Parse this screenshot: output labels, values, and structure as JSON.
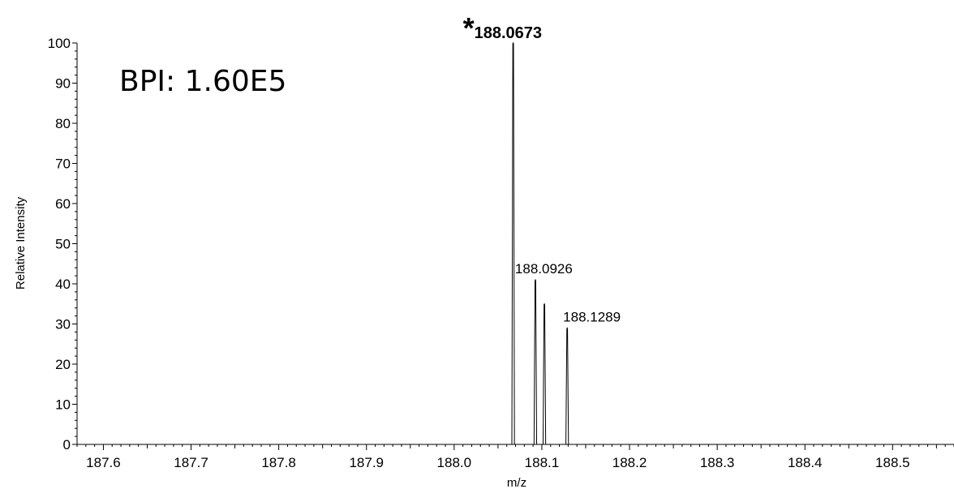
{
  "chart_data": {
    "type": "line",
    "title": "",
    "xlabel": "m/z",
    "ylabel": "Relative Intensity",
    "annotation": "BPI: 1.60E5",
    "xlim": [
      187.57,
      188.57
    ],
    "ylim": [
      0,
      100
    ],
    "x_ticks": [
      "187.6",
      "187.7",
      "187.8",
      "187.9",
      "188.0",
      "188.1",
      "188.2",
      "188.3",
      "188.4",
      "188.5"
    ],
    "y_ticks": [
      "0",
      "10",
      "20",
      "30",
      "40",
      "50",
      "60",
      "70",
      "80",
      "90",
      "100"
    ],
    "grid": false,
    "series": [
      {
        "peaks": [
          {
            "mz": 188.0673,
            "intensity": 100,
            "label": "188.0673",
            "marker": "*",
            "bold": true
          },
          {
            "mz": 188.0926,
            "intensity": 41,
            "label": "188.0926",
            "marker": "",
            "bold": false
          },
          {
            "mz": 188.1029,
            "intensity": 35,
            "label": "",
            "marker": "",
            "bold": false
          },
          {
            "mz": 188.1289,
            "intensity": 29,
            "label": "188.1289",
            "marker": "",
            "bold": false
          }
        ]
      }
    ]
  }
}
